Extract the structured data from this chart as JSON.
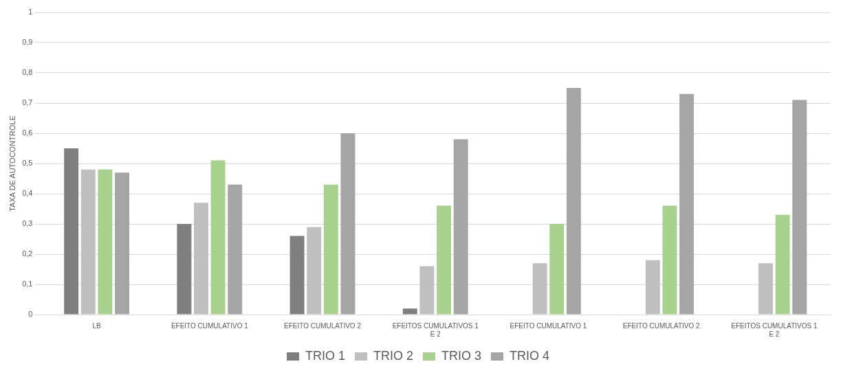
{
  "chart_data": {
    "type": "bar",
    "ylabel": "TAXA DE AUTOCONTROLE",
    "categories": [
      "LB",
      "EFEITO CUMULATIVO 1",
      "EFEITO CUMULATIVO 2",
      "EFEITOS CUMULATIVOS 1 E 2",
      "EFEITO CUMULATIVO 1",
      "EFEITO CUMULATIVO 2",
      "EFEITOS CUMULATIVOS 1 E 2"
    ],
    "series": [
      {
        "name": "TRIO 1",
        "color": "#7f7f7f",
        "values": [
          0.55,
          0.3,
          0.26,
          0.02,
          0,
          null,
          null
        ]
      },
      {
        "name": "TRIO 2",
        "color": "#bfbfbf",
        "values": [
          0.48,
          0.37,
          0.29,
          0.16,
          0.17,
          0.18,
          0.17
        ]
      },
      {
        "name": "TRIO 3",
        "color": "#a9d18e",
        "values": [
          0.48,
          0.51,
          0.43,
          0.36,
          0.3,
          0.36,
          0.33
        ]
      },
      {
        "name": "TRIO 4",
        "color": "#a5a5a5",
        "values": [
          0.47,
          0.43,
          0.6,
          0.58,
          0.75,
          0.73,
          0.71
        ]
      }
    ],
    "ylim": [
      0,
      1
    ],
    "yticks": [
      0,
      {
        "value": 0.1,
        "label": "0,1"
      },
      {
        "value": 0.2,
        "label": "0,2"
      },
      {
        "value": 0.3,
        "label": "0,3"
      },
      {
        "value": 0.4,
        "label": "0,4"
      },
      {
        "value": 0.5,
        "label": "0,5"
      },
      {
        "value": 0.6,
        "label": "0,6"
      },
      {
        "value": 0.7,
        "label": "0,7"
      },
      {
        "value": 0.8,
        "label": "0,8"
      },
      {
        "value": 0.9,
        "label": "0,9"
      },
      1
    ],
    "grid": "y",
    "legend": "bottom"
  }
}
